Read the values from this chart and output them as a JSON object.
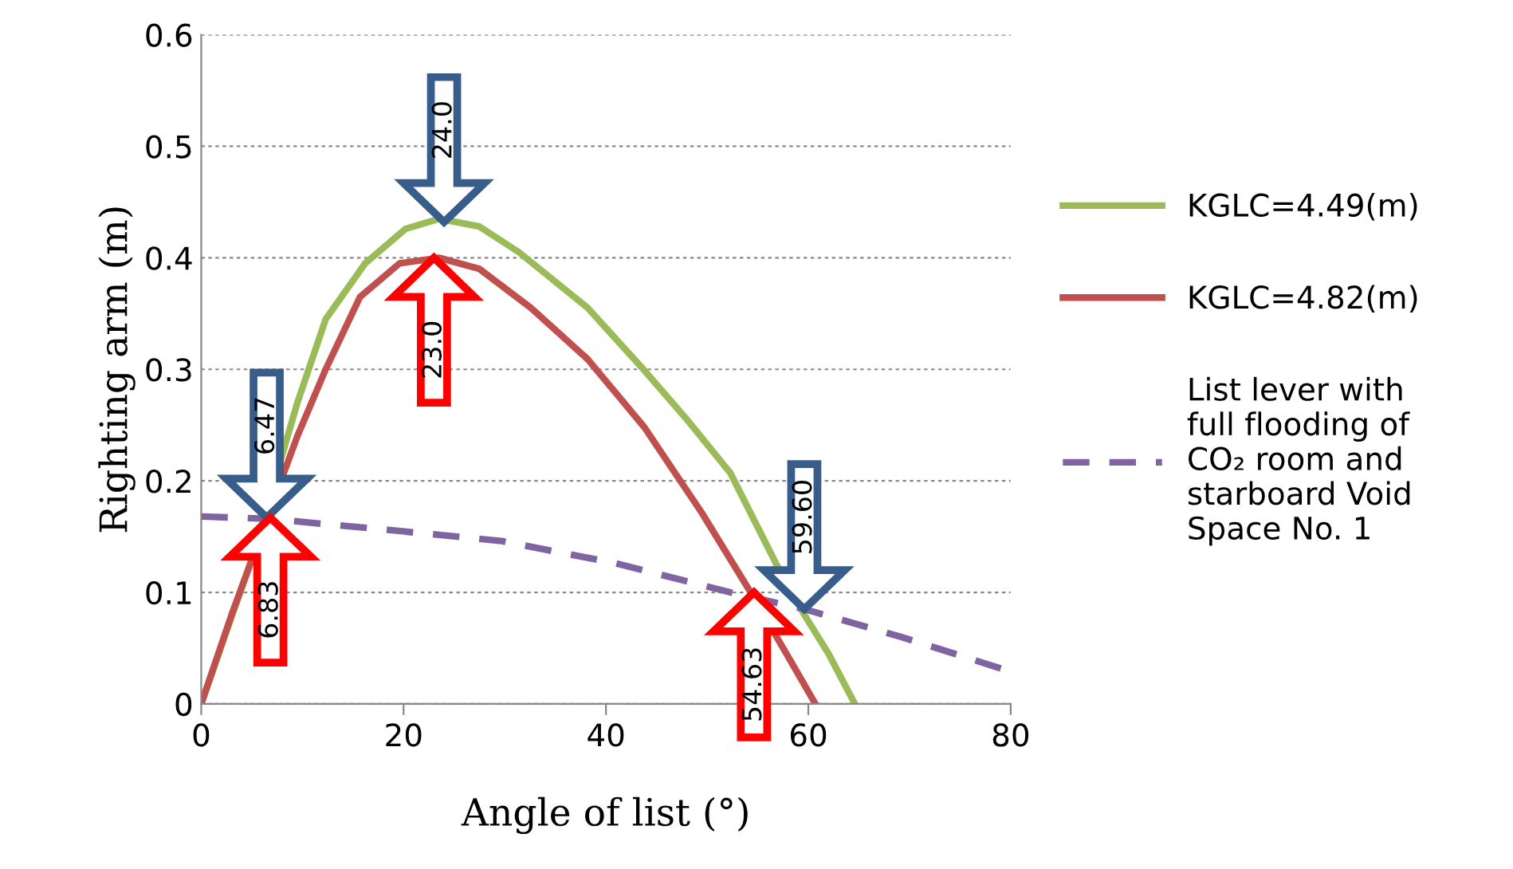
{
  "chart_data": {
    "type": "line",
    "xlabel": "Angle of list (°)",
    "ylabel": "Righting arm (m)",
    "xlim": [
      0,
      80
    ],
    "xticks": [
      0,
      20,
      40,
      60,
      80
    ],
    "ylim": [
      0,
      0.6
    ],
    "yticks": [
      0,
      0.1,
      0.2,
      0.3,
      0.4,
      0.5,
      0.6
    ],
    "grid": "y",
    "legend": "right",
    "series": [
      {
        "name": "KGLC=4.49(m)",
        "color": "#9bbb59",
        "line_style": "solid",
        "x": [
          0,
          5,
          9.5,
          12.3,
          16.2,
          20.2,
          23.5,
          27.5,
          31.4,
          38.2,
          43.8,
          48,
          52.3,
          56.8,
          59.6,
          62,
          64.6
        ],
        "values": [
          0,
          0.13,
          0.27,
          0.345,
          0.395,
          0.426,
          0.435,
          0.428,
          0.405,
          0.355,
          0.299,
          0.255,
          0.207,
          0.126,
          0.08,
          0.045,
          0
        ]
      },
      {
        "name": "KGLC=4.82(m)",
        "color": "#c0504d",
        "line_style": "solid",
        "x": [
          0,
          3,
          9.5,
          12.3,
          15.7,
          19.6,
          23.5,
          27.5,
          32.6,
          38.2,
          43.8,
          49.5,
          54.3,
          57.9,
          60.7
        ],
        "values": [
          0,
          0.08,
          0.24,
          0.3,
          0.365,
          0.395,
          0.4,
          0.39,
          0.355,
          0.309,
          0.248,
          0.171,
          0.1,
          0.044,
          0
        ]
      },
      {
        "name": "List lever with\nfull flooding of\nCO₂ room and\nstarboard Void\nSpace No. 1",
        "color": "#8064a2",
        "line_style": "dashed",
        "x": [
          0,
          6.6,
          18.5,
          29.7,
          41,
          52.3,
          59.6,
          69.2,
          80
        ],
        "values": [
          0.168,
          0.166,
          0.156,
          0.146,
          0.126,
          0.1,
          0.085,
          0.06,
          0.029
        ]
      }
    ],
    "annotations": [
      {
        "text": "24.0",
        "x": 24.0,
        "y": 0.432
      },
      {
        "text": "23.0",
        "x": 23.0,
        "y": 0.4
      },
      {
        "text": "6.47",
        "x": 6.47,
        "y": 0.167
      },
      {
        "text": "6.83",
        "x": 6.83,
        "y": 0.167
      },
      {
        "text": "59.60",
        "x": 59.6,
        "y": 0.085
      },
      {
        "text": "54.63",
        "x": 54.63,
        "y": 0.1
      }
    ]
  }
}
